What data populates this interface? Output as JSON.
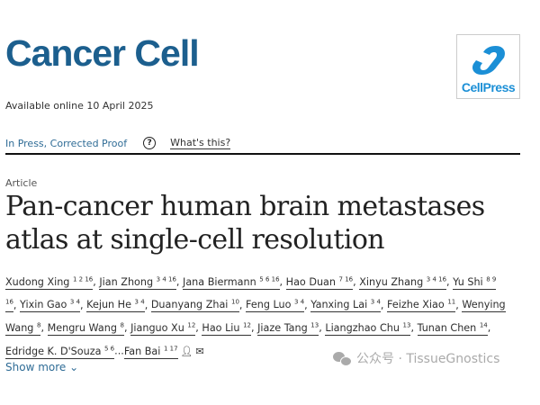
{
  "journal": {
    "title": "Cancer Cell",
    "available": "Available online 10 April 2025",
    "publisher_logo": "CellPress",
    "accent": "#1c5f8e"
  },
  "status": {
    "label": "In Press, Corrected Proof",
    "help_icon": "question-circle-icon",
    "whats_this": "What's this?"
  },
  "article": {
    "type": "Article",
    "title": "Pan-cancer human brain metastases atlas at single-cell resolution"
  },
  "authors": [
    {
      "name": "Xudong Xing",
      "sup": "1 2 16"
    },
    {
      "name": "Jian Zhong",
      "sup": "3 4 16"
    },
    {
      "name": "Jana Biermann",
      "sup": "5 6 16"
    },
    {
      "name": "Hao Duan",
      "sup": "7 16"
    },
    {
      "name": "Xinyu Zhang",
      "sup": "3 4 16"
    },
    {
      "name": "Yu Shi",
      "sup": "8 9 16"
    },
    {
      "name": "Yixin Gao",
      "sup": "3 4"
    },
    {
      "name": "Kejun He",
      "sup": "3 4"
    },
    {
      "name": "Duanyang Zhai",
      "sup": "10"
    },
    {
      "name": "Feng Luo",
      "sup": "3 4"
    },
    {
      "name": "Yanxing Lai",
      "sup": "3 4"
    },
    {
      "name": "Feizhe Xiao",
      "sup": "11"
    },
    {
      "name": "Wenying Wang",
      "sup": "8"
    },
    {
      "name": "Mengru Wang",
      "sup": "8"
    },
    {
      "name": "Jianguo Xu",
      "sup": "12"
    },
    {
      "name": "Hao Liu",
      "sup": "12"
    },
    {
      "name": "Jiaze Tang",
      "sup": "13"
    },
    {
      "name": "Liangzhao Chu",
      "sup": "13"
    },
    {
      "name": "Tunan Chen",
      "sup": "14"
    },
    {
      "name": "Edridge K. D'Souza",
      "sup": "5 6"
    },
    {
      "name": "Fan Bai",
      "sup": "1 17"
    }
  ],
  "show_more": "Show more",
  "watermark": "公众号 · TissueGnostics"
}
